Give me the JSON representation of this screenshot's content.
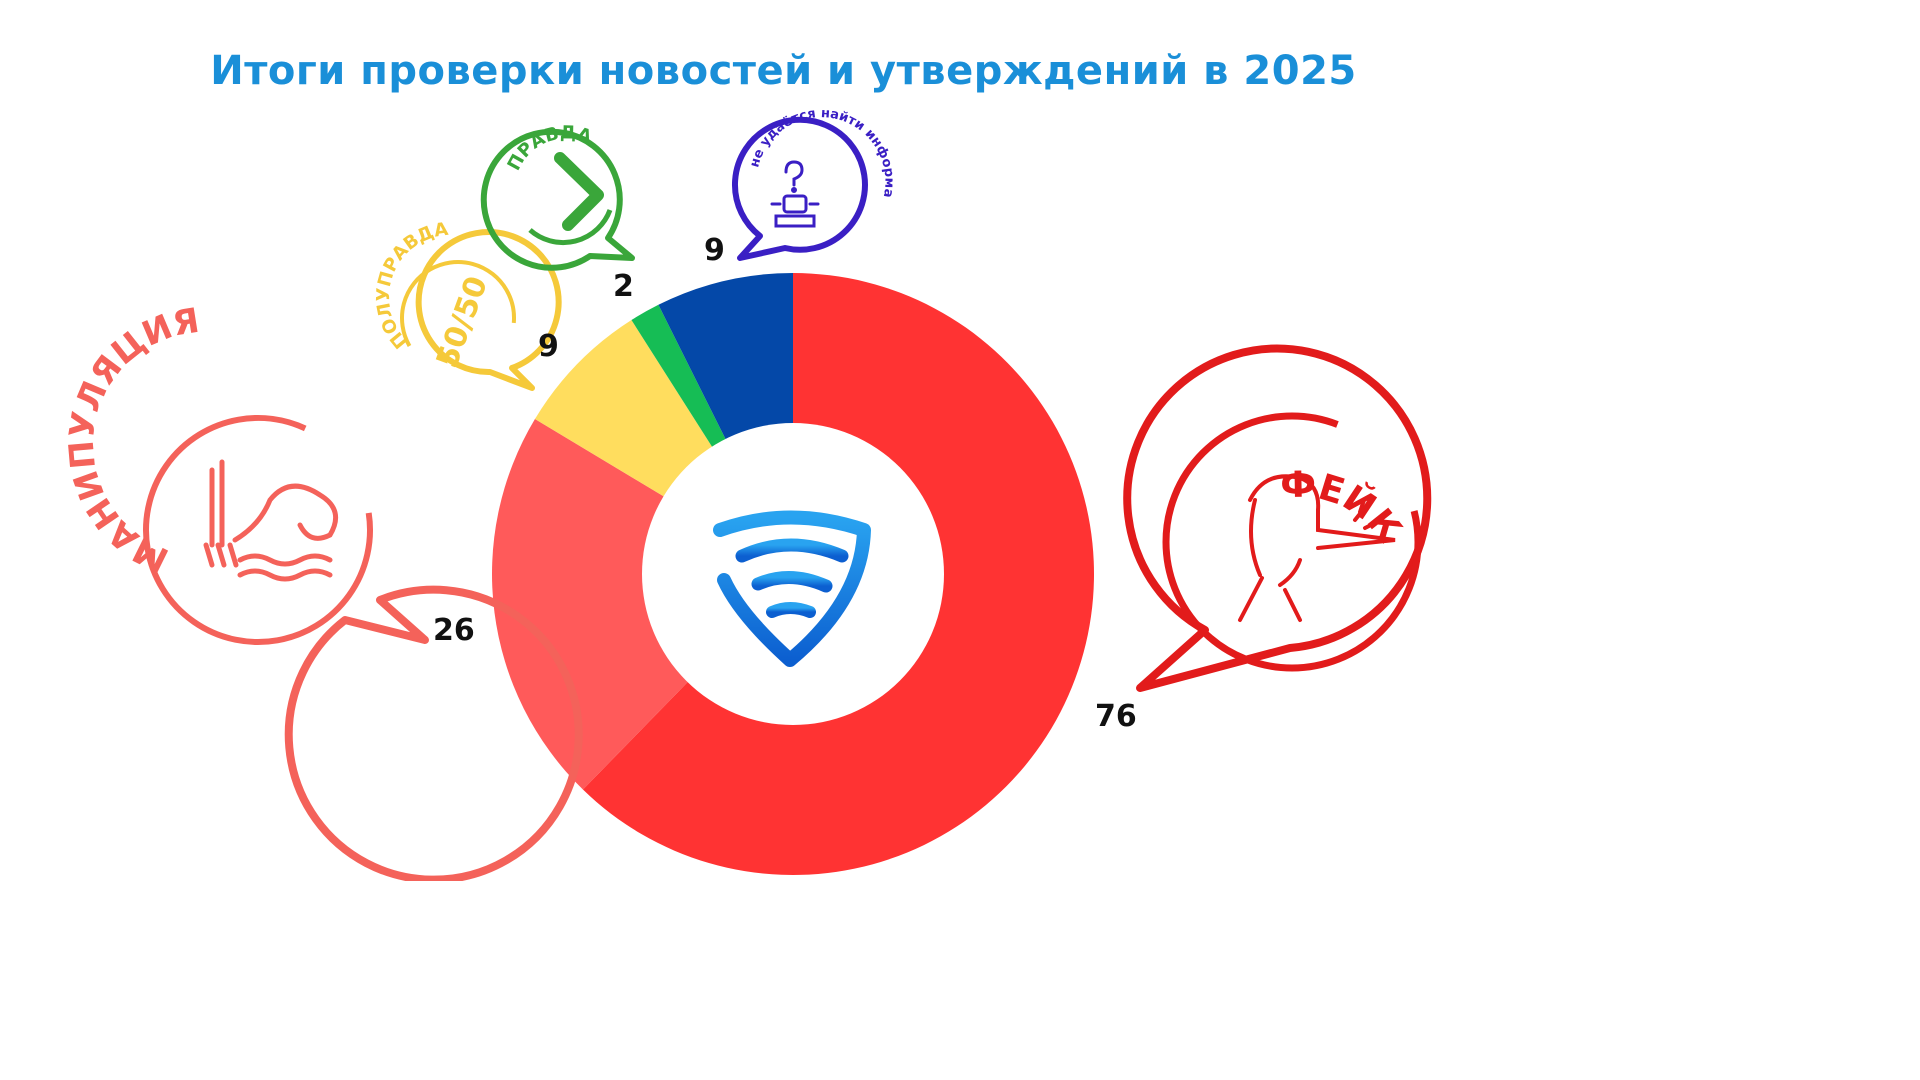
{
  "title": "Итоги проверки новостей и утверждений в 2025",
  "chart_data": {
    "type": "pie",
    "variant": "donut",
    "categories": [
      "фейк",
      "манипуляция",
      "полуправда",
      "правда",
      "не удаётся найти информацию"
    ],
    "values": [
      76,
      26,
      9,
      2,
      9
    ],
    "value_labels": [
      "76",
      "26",
      "9",
      "2",
      "9"
    ],
    "colors": [
      "#ff3333",
      "#ff5a5a",
      "#ffdd5e",
      "#16bd55",
      "#0448a8"
    ],
    "start": "top, clockwise",
    "center_icon": "shield-logo-icon"
  },
  "badges": [
    {
      "name": "fake-badge",
      "text": "ФЕЙК",
      "color": "#e21b1b",
      "icon": "liar-long-nose-icon"
    },
    {
      "name": "manipulation-badge",
      "text": "МАНИПУЛЯЦИЯ",
      "color": "#f4625a",
      "icon": "fork-noodles-icon"
    },
    {
      "name": "half-truth-badge",
      "text": "ПОЛУПРАВДА",
      "sub": "50/50",
      "color": "#f5c93a",
      "icon": "fifty-fifty-icon"
    },
    {
      "name": "truth-badge",
      "text": "ПРАВДА",
      "color": "#3aa63a",
      "icon": "check-icon"
    },
    {
      "name": "no-info-badge",
      "text": "не удаётся найти информацию",
      "color": "#3a1fc4",
      "icon": "robot-question-icon"
    }
  ]
}
